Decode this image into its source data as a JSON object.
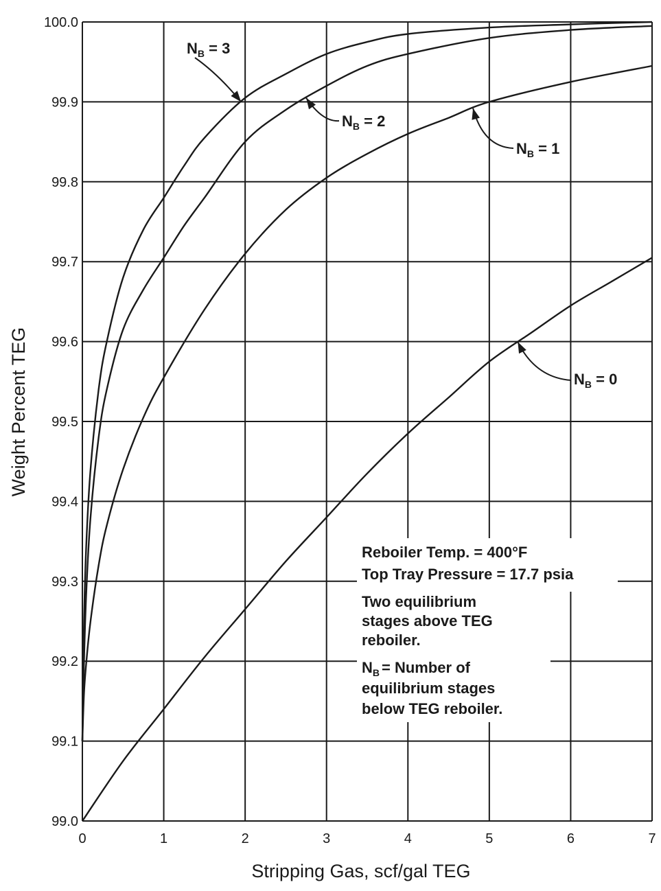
{
  "chart_data": {
    "type": "line",
    "xlabel": "Stripping Gas, scf/gal TEG",
    "ylabel": "Weight Percent TEG",
    "xlim": [
      0,
      7
    ],
    "ylim": [
      99.0,
      100.0
    ],
    "x_ticks": [
      "0",
      "1",
      "2",
      "3",
      "4",
      "5",
      "6",
      "7"
    ],
    "y_ticks": [
      "99.0",
      "99.1",
      "99.2",
      "99.3",
      "99.4",
      "99.5",
      "99.6",
      "99.7",
      "99.8",
      "99.9",
      "100.0"
    ],
    "grid": true,
    "series": [
      {
        "name": "N_B = 3",
        "label_main": "N",
        "label_sub": "B",
        "label_rest": " = 3",
        "x": [
          0,
          0.02,
          0.05,
          0.1,
          0.2,
          0.3,
          0.5,
          0.75,
          1.0,
          1.25,
          1.5,
          2.0,
          2.5,
          3.0,
          3.5,
          4.0,
          5.0,
          6.0,
          7.0
        ],
        "y": [
          99.1,
          99.25,
          99.35,
          99.44,
          99.54,
          99.6,
          99.68,
          99.74,
          99.78,
          99.82,
          99.855,
          99.905,
          99.935,
          99.96,
          99.975,
          99.985,
          99.993,
          99.997,
          100.0
        ]
      },
      {
        "name": "N_B = 2",
        "label_main": "N",
        "label_sub": "B",
        "label_rest": " = 2",
        "x": [
          0,
          0.02,
          0.05,
          0.1,
          0.2,
          0.3,
          0.5,
          0.75,
          1.0,
          1.25,
          1.5,
          2.0,
          2.5,
          3.0,
          3.5,
          4.0,
          5.0,
          6.0,
          7.0
        ],
        "y": [
          99.1,
          99.2,
          99.29,
          99.38,
          99.48,
          99.54,
          99.615,
          99.665,
          99.705,
          99.745,
          99.78,
          99.85,
          99.89,
          99.92,
          99.945,
          99.96,
          99.98,
          99.99,
          99.995
        ]
      },
      {
        "name": "N_B = 1",
        "label_main": "N",
        "label_sub": "B",
        "label_rest": " = 1",
        "x": [
          0,
          0.02,
          0.05,
          0.1,
          0.2,
          0.3,
          0.5,
          0.75,
          1.0,
          1.5,
          2.0,
          2.5,
          3.0,
          3.5,
          4.0,
          4.5,
          5.0,
          6.0,
          7.0
        ],
        "y": [
          99.1,
          99.16,
          99.2,
          99.25,
          99.32,
          99.37,
          99.44,
          99.505,
          99.555,
          99.64,
          99.71,
          99.765,
          99.805,
          99.835,
          99.86,
          99.88,
          99.9,
          99.925,
          99.945
        ]
      },
      {
        "name": "N_B = 0",
        "label_main": "N",
        "label_sub": "B",
        "label_rest": " = 0",
        "x": [
          0,
          0.5,
          1.0,
          1.5,
          2.0,
          2.5,
          3.0,
          3.5,
          4.0,
          4.5,
          5.0,
          5.5,
          6.0,
          6.5,
          7.0
        ],
        "y": [
          99.0,
          99.075,
          99.14,
          99.205,
          99.265,
          99.325,
          99.38,
          99.435,
          99.485,
          99.53,
          99.575,
          99.61,
          99.645,
          99.675,
          99.705
        ]
      }
    ],
    "annotations": [
      "Reboiler Temp. = 400°F",
      "Top Tray Pressure = 17.7 psia",
      "Two equilibrium",
      "stages above TEG",
      "reboiler.",
      "= Number of",
      "equilibrium stages",
      "below TEG reboiler."
    ],
    "note_sym_main": "N",
    "note_sym_sub": "B"
  }
}
